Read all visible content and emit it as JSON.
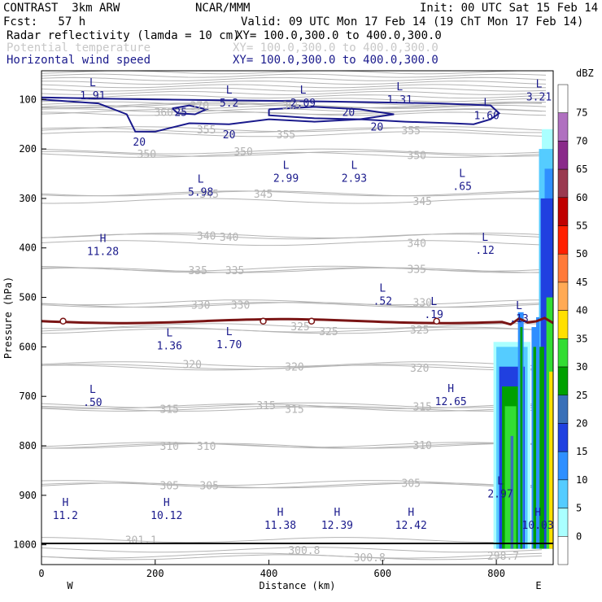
{
  "header": {
    "model": "CONTRAST  3km ARW",
    "center": "NCAR/MMM",
    "init": "Init: 00 UTC Sat 15 Feb 14",
    "fcst": "Fcst:   57 h",
    "valid": "Valid: 09 UTC Mon 17 Feb 14 (19 ChT Mon 17 Feb 14)",
    "field1_name": "Radar reflectivity (lamda = 10 cm)",
    "field1_xy": "XY= 100.0,300.0 to 400.0,300.0",
    "field2_name": "Potential temperature",
    "field2_xy": "XY= 100.0,300.0 to 400.0,300.0",
    "field3_name": "Horizontal wind speed",
    "field3_xy": "XY= 100.0,300.0 to 400.0,300.0"
  },
  "colors": {
    "theta": "#b4b4b4",
    "wind": "#1a1a8c",
    "freezing": "#7a1414",
    "label": "#1a1a8c"
  },
  "chart_data": {
    "type": "cross-section",
    "title": "Radar reflectivity (lamda = 10 cm), Potential temperature, Horizontal wind speed",
    "xlabel": "Distance (km)",
    "ylabel": "Pressure (hPa)",
    "xlim": [
      0,
      900
    ],
    "ylim": [
      1040,
      42
    ],
    "xticks": [
      0,
      200,
      400,
      600,
      800
    ],
    "yticks": [
      100,
      200,
      300,
      400,
      500,
      600,
      700,
      800,
      900,
      1000
    ],
    "end_labels": {
      "left": "W",
      "right": "E"
    },
    "surface_pressure": 1008,
    "colorbar": {
      "unit": "dBZ",
      "levels": [
        0,
        5,
        10,
        15,
        20,
        25,
        30,
        35,
        40,
        45,
        50,
        55,
        60,
        65,
        70,
        75
      ],
      "colors": [
        "#ffffff",
        "#aaffff",
        "#55ccff",
        "#2f8fff",
        "#2040e0",
        "#3a70b8",
        "#00a000",
        "#33dd33",
        "#ffe000",
        "#ffaa55",
        "#ff7a3a",
        "#ff2000",
        "#c00000",
        "#9a3a50",
        "#8a2a8a",
        "#b070c0",
        "#ffffff"
      ]
    },
    "theta_labels": [
      {
        "text": "370",
        "x": 278,
        "p": 112
      },
      {
        "text": "365",
        "x": 440,
        "p": 112
      },
      {
        "text": "360",
        "x": 215,
        "p": 125
      },
      {
        "text": "355",
        "x": 290,
        "p": 160
      },
      {
        "text": "355",
        "x": 430,
        "p": 170
      },
      {
        "text": "355",
        "x": 650,
        "p": 162
      },
      {
        "text": "350",
        "x": 185,
        "p": 210
      },
      {
        "text": "350",
        "x": 355,
        "p": 205
      },
      {
        "text": "350",
        "x": 660,
        "p": 212
      },
      {
        "text": "345",
        "x": 295,
        "p": 290
      },
      {
        "text": "345",
        "x": 390,
        "p": 290
      },
      {
        "text": "345",
        "x": 670,
        "p": 305
      },
      {
        "text": "340",
        "x": 290,
        "p": 375
      },
      {
        "text": "340",
        "x": 330,
        "p": 377
      },
      {
        "text": "340",
        "x": 660,
        "p": 390
      },
      {
        "text": "335",
        "x": 275,
        "p": 445
      },
      {
        "text": "335",
        "x": 340,
        "p": 445
      },
      {
        "text": "335",
        "x": 660,
        "p": 442
      },
      {
        "text": "330",
        "x": 280,
        "p": 515
      },
      {
        "text": "330",
        "x": 350,
        "p": 515
      },
      {
        "text": "330",
        "x": 670,
        "p": 510
      },
      {
        "text": "325",
        "x": 455,
        "p": 558
      },
      {
        "text": "325",
        "x": 505,
        "p": 568
      },
      {
        "text": "325",
        "x": 665,
        "p": 565
      },
      {
        "text": "320",
        "x": 265,
        "p": 635
      },
      {
        "text": "320",
        "x": 445,
        "p": 640
      },
      {
        "text": "320",
        "x": 665,
        "p": 642
      },
      {
        "text": "315",
        "x": 225,
        "p": 725
      },
      {
        "text": "315",
        "x": 395,
        "p": 718
      },
      {
        "text": "315",
        "x": 445,
        "p": 725
      },
      {
        "text": "315",
        "x": 670,
        "p": 720
      },
      {
        "text": "310",
        "x": 225,
        "p": 800
      },
      {
        "text": "310",
        "x": 290,
        "p": 800
      },
      {
        "text": "310",
        "x": 670,
        "p": 798
      },
      {
        "text": "305",
        "x": 225,
        "p": 880
      },
      {
        "text": "305",
        "x": 295,
        "p": 880
      },
      {
        "text": "305",
        "x": 650,
        "p": 875
      },
      {
        "text": "301.1",
        "x": 175,
        "p": 990
      },
      {
        "text": "300.8",
        "x": 462,
        "p": 1010
      },
      {
        "text": "300.8",
        "x": 577,
        "p": 1025
      },
      {
        "text": "298.7",
        "x": 812,
        "p": 1022
      }
    ],
    "wind_labels": [
      {
        "text": "25",
        "x": 245,
        "p": 125
      },
      {
        "text": "20",
        "x": 540,
        "p": 125
      },
      {
        "text": "20",
        "x": 330,
        "p": 170
      },
      {
        "text": "20",
        "x": 590,
        "p": 155
      },
      {
        "text": "20",
        "x": 172,
        "p": 185
      }
    ],
    "freezing_label": "0",
    "freezing_level_markers_x": [
      38,
      390,
      475,
      695
    ],
    "extrema": [
      {
        "type": "L",
        "value": "1.91",
        "x": 90,
        "p": 80
      },
      {
        "type": "L",
        "value": "5.2",
        "x": 330,
        "p": 95
      },
      {
        "type": "L",
        "value": "2.09",
        "x": 460,
        "p": 95
      },
      {
        "type": "L",
        "value": "1.31",
        "x": 630,
        "p": 88
      },
      {
        "type": "L",
        "value": "1.60",
        "x": 783,
        "p": 120
      },
      {
        "type": "L",
        "value": "3.21",
        "x": 875,
        "p": 82
      },
      {
        "type": "L",
        "value": "2.99",
        "x": 430,
        "p": 247
      },
      {
        "type": "L",
        "value": "2.93",
        "x": 550,
        "p": 247
      },
      {
        "type": "L",
        "value": ".65",
        "x": 740,
        "p": 263
      },
      {
        "type": "L",
        "value": "5.98",
        "x": 280,
        "p": 275
      },
      {
        "type": "H",
        "value": "11.28",
        "x": 108,
        "p": 395
      },
      {
        "type": "L",
        "value": ".12",
        "x": 780,
        "p": 392
      },
      {
        "type": "L",
        "value": ".52",
        "x": 600,
        "p": 495
      },
      {
        "type": "L",
        "value": ".19",
        "x": 690,
        "p": 522
      },
      {
        "type": "L",
        "value": ".13",
        "x": 840,
        "p": 530
      },
      {
        "type": "L",
        "value": "1.36",
        "x": 225,
        "p": 585
      },
      {
        "type": "L",
        "value": "1.70",
        "x": 330,
        "p": 583
      },
      {
        "type": "L",
        "value": ".50",
        "x": 90,
        "p": 700
      },
      {
        "type": "H",
        "value": "12.65",
        "x": 720,
        "p": 698
      },
      {
        "type": "L",
        "value": "2.97",
        "x": 807,
        "p": 885
      },
      {
        "type": "H",
        "value": "11.2",
        "x": 42,
        "p": 928
      },
      {
        "type": "H",
        "value": "10.12",
        "x": 220,
        "p": 928
      },
      {
        "type": "H",
        "value": "11.38",
        "x": 420,
        "p": 948
      },
      {
        "type": "H",
        "value": "12.39",
        "x": 520,
        "p": 948
      },
      {
        "type": "H",
        "value": "12.42",
        "x": 650,
        "p": 948
      },
      {
        "type": "H",
        "value": "10.03",
        "x": 873,
        "p": 948
      }
    ]
  }
}
